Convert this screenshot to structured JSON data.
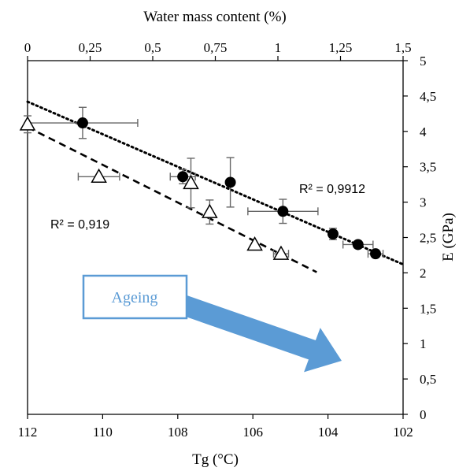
{
  "chart_data": {
    "type": "scatter",
    "title": "",
    "x_axis": {
      "label": "Tg (°C)",
      "range": [
        112,
        102
      ],
      "ticks": [
        "112",
        "110",
        "108",
        "106",
        "104",
        "102"
      ],
      "tick_values": [
        112,
        110,
        108,
        106,
        104,
        102
      ],
      "reversed": true
    },
    "top_axis": {
      "label": "Water mass content (%)",
      "range": [
        0,
        1.5
      ],
      "ticks": [
        "0",
        "0,25",
        "0,5",
        "0,75",
        "1",
        "1,25",
        "1,5"
      ],
      "tick_values": [
        0,
        0.25,
        0.5,
        0.75,
        1,
        1.25,
        1.5
      ]
    },
    "y_axis": {
      "label": "E (GPa)",
      "range": [
        0,
        5
      ],
      "position": "right",
      "ticks": [
        "0",
        "0,5",
        "1",
        "1,5",
        "2",
        "2,5",
        "3",
        "3,5",
        "4",
        "4,5",
        "5"
      ],
      "tick_values": [
        0,
        0.5,
        1,
        1.5,
        2,
        2.5,
        3,
        3.5,
        4,
        4.5,
        5
      ]
    },
    "grid": false,
    "series": [
      {
        "marker": "circle",
        "fill": "#000000",
        "axis": "top",
        "points": [
          {
            "x": 0.22,
            "y": 4.12,
            "xerr": 0.22,
            "yerr": 0.22
          },
          {
            "x": 0.62,
            "y": 3.36,
            "xerr": 0.05,
            "yerr": 0.1
          },
          {
            "x": 0.81,
            "y": 3.28,
            "xerr": 0,
            "yerr": 0.35
          },
          {
            "x": 1.02,
            "y": 2.87,
            "xerr": 0.14,
            "yerr": 0.17
          },
          {
            "x": 1.22,
            "y": 2.55,
            "xerr": 0,
            "yerr": 0.08
          },
          {
            "x": 1.32,
            "y": 2.4,
            "xerr": 0.06,
            "yerr": 0.05
          },
          {
            "x": 1.39,
            "y": 2.27,
            "xerr": 0.03,
            "yerr": 0.05
          }
        ],
        "trendline": {
          "style": "dotted",
          "x0": 0,
          "y0": 4.42,
          "x1": 1.5,
          "y1": 2.12
        },
        "r2_label": "R² = 0,9912"
      },
      {
        "marker": "triangle-open",
        "fill": "#ffffff",
        "axis": "bottom",
        "points": [
          {
            "x": 112.0,
            "y": 4.1,
            "xerr": 0,
            "yerr": 0.12
          },
          {
            "x": 110.1,
            "y": 3.36,
            "xerr": 0.55,
            "yerr": 0
          },
          {
            "x": 107.65,
            "y": 3.27,
            "xerr": 0,
            "yerr": 0.35
          },
          {
            "x": 107.15,
            "y": 2.86,
            "xerr": 0,
            "yerr": 0.17
          },
          {
            "x": 105.95,
            "y": 2.4,
            "xerr": 0,
            "yerr": 0
          },
          {
            "x": 105.25,
            "y": 2.27,
            "xerr": 0.2,
            "yerr": 0
          }
        ],
        "trendline": {
          "style": "dashed",
          "x0": 112,
          "y0": 4.06,
          "x1": 104.3,
          "y1": 2.01
        },
        "r2_label": "R² = 0,919"
      }
    ],
    "annotation_arrow": {
      "label": "Ageing",
      "color": "#5b9bd5"
    }
  }
}
